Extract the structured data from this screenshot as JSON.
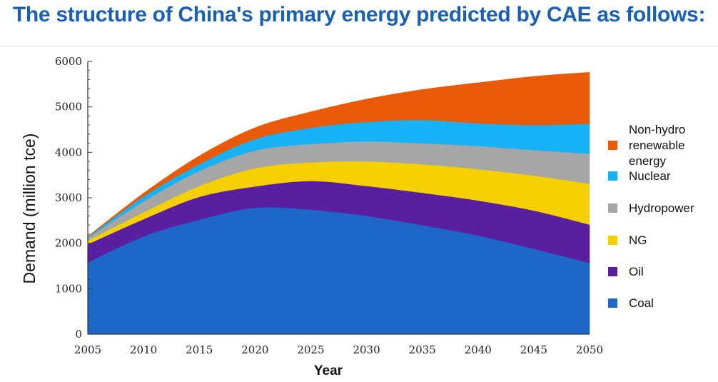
{
  "page_title": "The structure of China's primary energy predicted by CAE as follows:",
  "chart_data": {
    "type": "area",
    "stacked": true,
    "title": "The structure of China's primary energy predicted by CAE as follows:",
    "xlabel": "Year",
    "ylabel": "Demand (million tce)",
    "x": [
      2005,
      2010,
      2015,
      2020,
      2025,
      2030,
      2035,
      2040,
      2045,
      2050
    ],
    "xlim": [
      2005,
      2050
    ],
    "ylim": [
      0,
      6000
    ],
    "yticks": [
      0,
      1000,
      2000,
      3000,
      4000,
      5000,
      6000
    ],
    "legend_position": "right",
    "series": [
      {
        "name": "Coal",
        "legend_lines": [
          "Coal"
        ],
        "color": "#1f66c9",
        "values": [
          1580,
          2150,
          2520,
          2780,
          2740,
          2600,
          2400,
          2170,
          1880,
          1570
        ]
      },
      {
        "name": "Oil",
        "legend_lines": [
          "Oil"
        ],
        "color": "#5a1fa0",
        "values": [
          400,
          380,
          500,
          470,
          630,
          660,
          710,
          770,
          840,
          840
        ]
      },
      {
        "name": "NG",
        "legend_lines": [
          "NG"
        ],
        "color": "#f5d000",
        "values": [
          80,
          150,
          240,
          400,
          410,
          540,
          630,
          690,
          770,
          900
        ]
      },
      {
        "name": "Hydropower",
        "legend_lines": [
          "Hydropower"
        ],
        "color": "#a6a6a6",
        "values": [
          60,
          240,
          330,
          390,
          400,
          440,
          460,
          510,
          560,
          660
        ]
      },
      {
        "name": "Nuclear",
        "legend_lines": [
          "Nuclear"
        ],
        "color": "#16b2f5",
        "values": [
          20,
          110,
          150,
          250,
          360,
          430,
          510,
          500,
          550,
          660
        ]
      },
      {
        "name": "Non-hydro renewable energy",
        "legend_lines": [
          "Non-hydro",
          "renewable",
          "energy"
        ],
        "color": "#e85a05",
        "values": [
          10,
          70,
          180,
          250,
          350,
          500,
          670,
          890,
          1070,
          1130
        ]
      }
    ]
  }
}
